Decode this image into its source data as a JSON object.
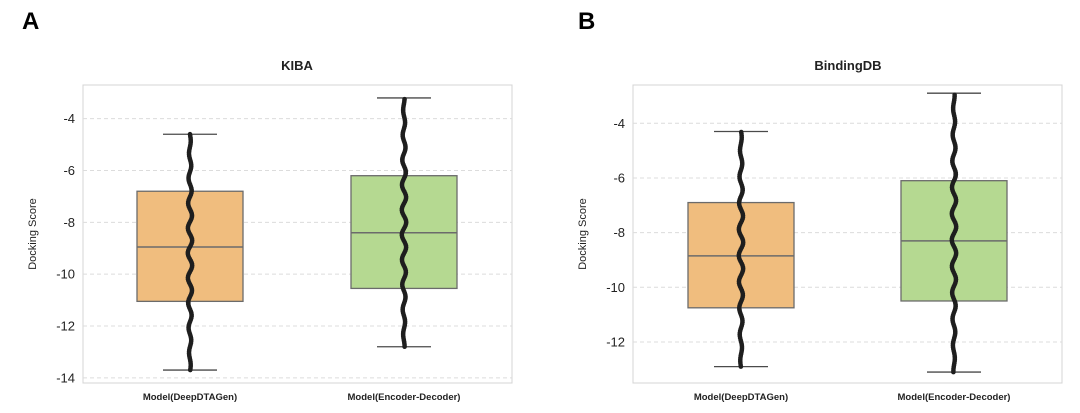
{
  "panels": [
    "A",
    "B"
  ],
  "chart_data": [
    {
      "type": "box",
      "title": "KIBA",
      "xlabel": "",
      "ylabel": "Docking Score",
      "ylim": [
        -14.2,
        -2.7
      ],
      "yticks": [
        -4,
        -6,
        -8,
        -10,
        -12,
        -14
      ],
      "grid": true,
      "categories": [
        "Model(DeepDTAGen)",
        "Model(Encoder-Decoder)"
      ],
      "colors": [
        "#f0bd7e",
        "#b5d991"
      ],
      "boxes": [
        {
          "min": -13.7,
          "q1": -11.05,
          "median": -8.95,
          "q3": -6.8,
          "max": -4.6
        },
        {
          "min": -12.8,
          "q1": -10.55,
          "median": -8.4,
          "q3": -6.2,
          "max": -3.2
        }
      ]
    },
    {
      "type": "box",
      "title": "BindingDB",
      "xlabel": "",
      "ylabel": "Docking Score",
      "ylim": [
        -13.5,
        -2.6
      ],
      "yticks": [
        -4,
        -6,
        -8,
        -10,
        -12
      ],
      "grid": true,
      "categories": [
        "Model(DeepDTAGen)",
        "Model(Encoder-Decoder)"
      ],
      "colors": [
        "#f0bd7e",
        "#b5d991"
      ],
      "boxes": [
        {
          "min": -12.9,
          "q1": -10.75,
          "median": -8.85,
          "q3": -6.9,
          "max": -4.3
        },
        {
          "min": -13.1,
          "q1": -10.5,
          "median": -8.3,
          "q3": -6.1,
          "max": -2.9
        }
      ]
    }
  ]
}
